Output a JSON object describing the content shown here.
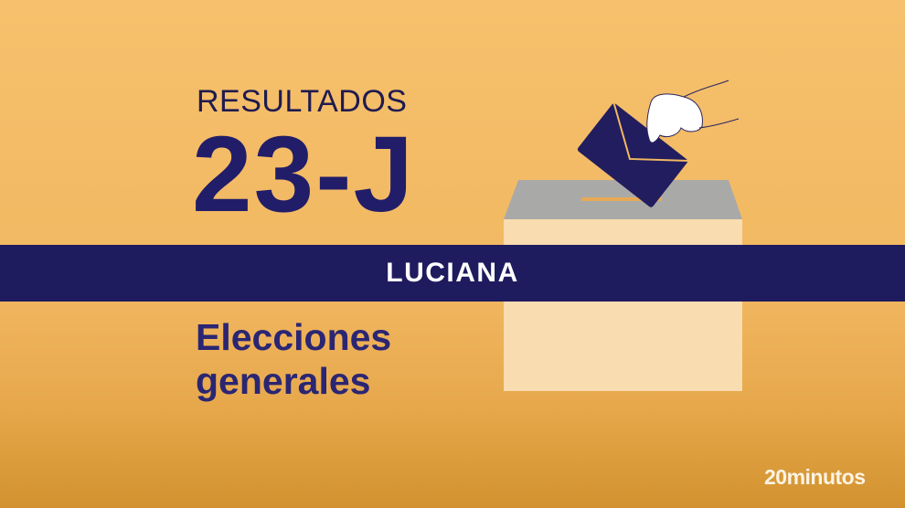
{
  "header": {
    "kicker": "RESULTADOS",
    "title": "23-J"
  },
  "subtitle": {
    "line1": "Elecciones",
    "line2": "generales"
  },
  "banner": {
    "label": "LUCIANA"
  },
  "brand": {
    "logo_text": "20minutos"
  },
  "colors": {
    "background": "#f2b862",
    "navy": "#1e1b5e",
    "box_front": "#f9dcb0",
    "box_lid": "#a8a9a6"
  },
  "illustration": {
    "icon": "ballot-box-with-envelope-icon"
  }
}
